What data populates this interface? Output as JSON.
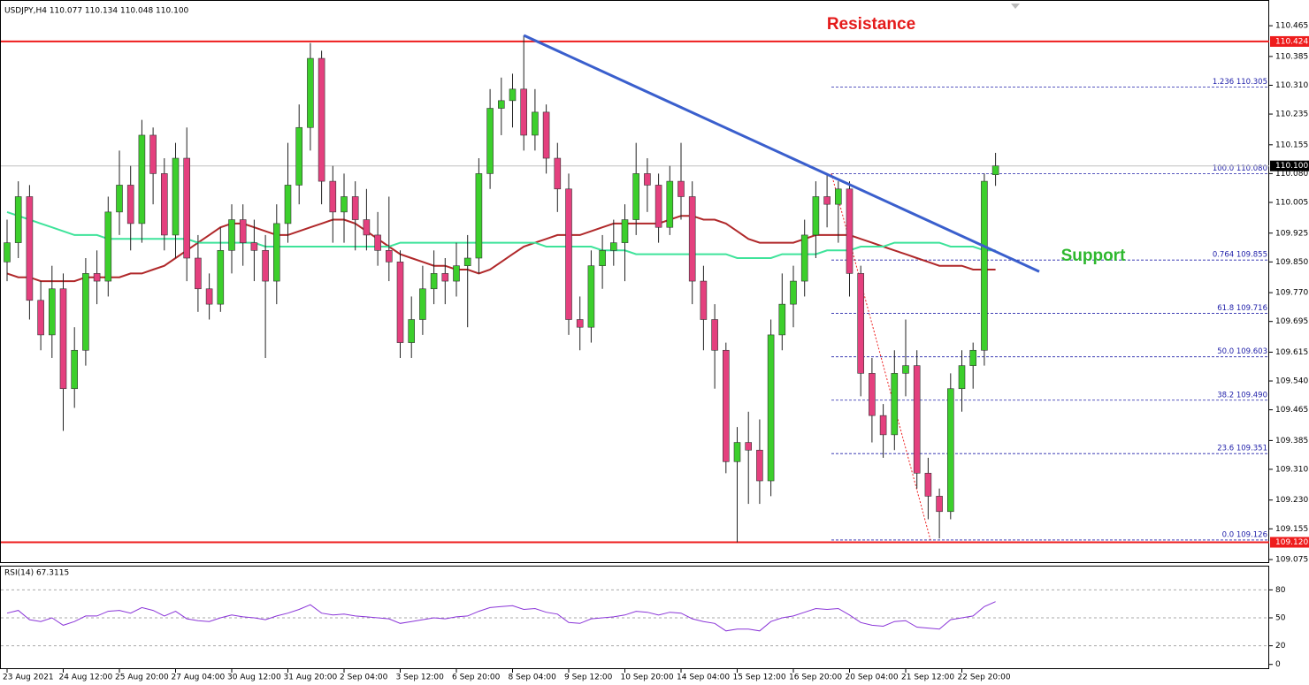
{
  "chart_data": {
    "type": "candlestick",
    "title": "USDJPY,H4 110.077 110.134 110.048 110.100",
    "categories": [
      "23 Aug 2021",
      null,
      null,
      null,
      null,
      "24 Aug 12:00",
      null,
      null,
      null,
      null,
      "25 Aug 20:00",
      null,
      null,
      null,
      null,
      "27 Aug 04:00",
      null,
      null,
      null,
      null,
      "30 Aug 12:00",
      null,
      null,
      null,
      null,
      "31 Aug 20:00",
      null,
      null,
      null,
      null,
      "2 Sep 04:00",
      null,
      null,
      null,
      null,
      "3 Sep 12:00",
      null,
      null,
      null,
      null,
      "6 Sep 20:00",
      null,
      null,
      null,
      null,
      "8 Sep 04:00",
      null,
      null,
      null,
      null,
      "9 Sep 12:00",
      null,
      null,
      null,
      null,
      "10 Sep 20:00",
      null,
      null,
      null,
      null,
      "14 Sep 04:00",
      null,
      null,
      null,
      null,
      "15 Sep 12:00",
      null,
      null,
      null,
      null,
      "16 Sep 20:00",
      null,
      null,
      null,
      null,
      "20 Sep 04:00",
      null,
      null,
      null,
      null,
      "21 Sep 12:00",
      null,
      null,
      null,
      null,
      "22 Sep 20:00",
      null,
      null,
      null
    ],
    "open": [
      109.85,
      109.9,
      110.02,
      109.75,
      109.66,
      109.78,
      109.52,
      109.62,
      109.82,
      109.8,
      109.98,
      110.05,
      109.95,
      110.18,
      110.08,
      109.92,
      110.12,
      109.86,
      109.78,
      109.74,
      109.88,
      109.96,
      109.9,
      109.88,
      109.8,
      109.95,
      110.05,
      110.2,
      110.38,
      110.06,
      109.98,
      110.02,
      109.96,
      109.92,
      109.88,
      109.85,
      109.64,
      109.7,
      109.78,
      109.82,
      109.8,
      109.84,
      109.86,
      110.08,
      110.25,
      110.27,
      110.3,
      110.18,
      110.24,
      110.12,
      110.04,
      109.7,
      109.68,
      109.84,
      109.88,
      109.9,
      109.96,
      110.08,
      110.05,
      109.94,
      110.06,
      110.02,
      109.8,
      109.7,
      109.62,
      109.33,
      109.38,
      109.36,
      109.28,
      109.66,
      109.74,
      109.8,
      109.92,
      110.02,
      110.0,
      110.04,
      109.82,
      109.56,
      109.45,
      109.4,
      109.56,
      109.58,
      109.3,
      109.24,
      109.2,
      109.52,
      109.58,
      109.62,
      110.077
    ],
    "high": [
      109.96,
      110.06,
      110.05,
      109.8,
      109.84,
      109.82,
      109.68,
      109.86,
      109.88,
      110.02,
      110.14,
      110.1,
      110.22,
      110.2,
      110.12,
      110.16,
      110.2,
      109.92,
      109.82,
      109.94,
      110.0,
      110.0,
      109.96,
      109.92,
      110.0,
      110.16,
      110.26,
      110.42,
      110.4,
      110.1,
      110.08,
      110.06,
      110.04,
      109.98,
      110.02,
      109.88,
      109.76,
      109.84,
      109.88,
      109.86,
      109.9,
      109.92,
      110.12,
      110.3,
      110.33,
      110.34,
      110.44,
      110.3,
      110.26,
      110.16,
      110.08,
      109.76,
      109.88,
      109.92,
      109.96,
      110.0,
      110.16,
      110.12,
      110.08,
      110.1,
      110.16,
      110.06,
      109.84,
      109.74,
      109.64,
      109.42,
      109.46,
      109.44,
      109.7,
      109.82,
      109.84,
      109.96,
      110.06,
      110.08,
      110.06,
      110.06,
      109.84,
      109.6,
      109.48,
      109.62,
      109.7,
      109.62,
      109.34,
      109.26,
      109.56,
      109.62,
      109.64,
      110.08,
      110.134
    ],
    "low": [
      109.8,
      109.86,
      109.7,
      109.62,
      109.6,
      109.41,
      109.47,
      109.58,
      109.74,
      109.76,
      109.92,
      109.88,
      109.9,
      110.0,
      109.88,
      109.86,
      109.8,
      109.72,
      109.7,
      109.72,
      109.82,
      109.84,
      109.8,
      109.6,
      109.74,
      109.9,
      110.0,
      110.14,
      110.0,
      109.9,
      109.9,
      109.88,
      109.88,
      109.84,
      109.8,
      109.6,
      109.6,
      109.66,
      109.74,
      109.74,
      109.76,
      109.68,
      109.82,
      110.04,
      110.18,
      110.2,
      110.14,
      110.14,
      110.08,
      109.98,
      109.66,
      109.62,
      109.64,
      109.78,
      109.84,
      109.8,
      109.92,
      109.98,
      109.9,
      109.92,
      109.96,
      109.74,
      109.62,
      109.52,
      109.3,
      109.12,
      109.22,
      109.22,
      109.24,
      109.62,
      109.68,
      109.76,
      109.86,
      109.94,
      109.9,
      109.76,
      109.5,
      109.38,
      109.34,
      109.36,
      109.5,
      109.26,
      109.18,
      109.13,
      109.18,
      109.46,
      109.52,
      109.58,
      110.048
    ],
    "close": [
      109.9,
      110.02,
      109.75,
      109.66,
      109.78,
      109.52,
      109.62,
      109.82,
      109.8,
      109.98,
      110.05,
      109.95,
      110.18,
      110.08,
      109.92,
      110.12,
      109.86,
      109.78,
      109.74,
      109.88,
      109.96,
      109.9,
      109.88,
      109.8,
      109.95,
      110.05,
      110.2,
      110.38,
      110.06,
      109.98,
      110.02,
      109.96,
      109.92,
      109.88,
      109.85,
      109.64,
      109.7,
      109.78,
      109.82,
      109.8,
      109.84,
      109.86,
      110.08,
      110.25,
      110.27,
      110.3,
      110.18,
      110.24,
      110.12,
      110.04,
      109.7,
      109.68,
      109.84,
      109.88,
      109.9,
      109.96,
      110.08,
      110.05,
      109.94,
      110.06,
      110.02,
      109.8,
      109.7,
      109.62,
      109.33,
      109.38,
      109.36,
      109.28,
      109.66,
      109.74,
      109.8,
      109.92,
      110.02,
      110.0,
      110.04,
      109.82,
      109.56,
      109.45,
      109.4,
      109.56,
      109.58,
      109.3,
      109.24,
      109.2,
      109.52,
      109.58,
      109.62,
      110.06,
      110.1
    ],
    "colors": {
      "up": "#3ccf2c",
      "down": "#e4407e",
      "wick": "#222222"
    },
    "moving_averages": [
      {
        "color": "#b0282a",
        "values": [
          109.82,
          109.81,
          109.81,
          109.8,
          109.8,
          109.8,
          109.8,
          109.81,
          109.81,
          109.81,
          109.81,
          109.82,
          109.82,
          109.83,
          109.84,
          109.86,
          109.88,
          109.9,
          109.92,
          109.94,
          109.95,
          109.95,
          109.94,
          109.93,
          109.92,
          109.92,
          109.93,
          109.94,
          109.95,
          109.96,
          109.96,
          109.95,
          109.93,
          109.91,
          109.89,
          109.87,
          109.86,
          109.85,
          109.84,
          109.84,
          109.83,
          109.83,
          109.82,
          109.83,
          109.85,
          109.87,
          109.89,
          109.9,
          109.91,
          109.92,
          109.92,
          109.92,
          109.93,
          109.94,
          109.95,
          109.95,
          109.95,
          109.95,
          109.95,
          109.96,
          109.97,
          109.97,
          109.96,
          109.96,
          109.95,
          109.93,
          109.91,
          109.9,
          109.9,
          109.9,
          109.9,
          109.91,
          109.92,
          109.92,
          109.92,
          109.92,
          109.91,
          109.9,
          109.89,
          109.88,
          109.87,
          109.86,
          109.85,
          109.84,
          109.84,
          109.84,
          109.83,
          109.83,
          109.83
        ]
      },
      {
        "color": "#3ee39a",
        "values": [
          109.98,
          109.97,
          109.96,
          109.95,
          109.94,
          109.93,
          109.92,
          109.92,
          109.92,
          109.91,
          109.91,
          109.91,
          109.91,
          109.91,
          109.91,
          109.91,
          109.91,
          109.9,
          109.9,
          109.9,
          109.9,
          109.9,
          109.9,
          109.89,
          109.89,
          109.89,
          109.89,
          109.89,
          109.89,
          109.89,
          109.89,
          109.89,
          109.89,
          109.89,
          109.89,
          109.9,
          109.9,
          109.9,
          109.9,
          109.9,
          109.9,
          109.9,
          109.9,
          109.9,
          109.9,
          109.9,
          109.9,
          109.9,
          109.89,
          109.89,
          109.89,
          109.89,
          109.89,
          109.88,
          109.88,
          109.88,
          109.87,
          109.87,
          109.87,
          109.87,
          109.87,
          109.87,
          109.87,
          109.87,
          109.87,
          109.86,
          109.86,
          109.86,
          109.86,
          109.87,
          109.87,
          109.87,
          109.87,
          109.88,
          109.88,
          109.88,
          109.89,
          109.89,
          109.89,
          109.9,
          109.9,
          109.9,
          109.9,
          109.9,
          109.89,
          109.89,
          109.89,
          109.88,
          109.88
        ]
      }
    ],
    "trendline": [
      110.44,
      109.825
    ],
    "levels": [
      {
        "value": 110.424,
        "color": "#ee1c1c"
      },
      {
        "value": 110.1,
        "label": "110.100",
        "color": "#000000"
      },
      {
        "value": 109.12,
        "label": "109.120",
        "color": "#ee1c1c"
      }
    ],
    "fibonacci": [
      {
        "value": 110.305,
        "label": "1.236 110.305"
      },
      {
        "value": 110.08,
        "label": "100.0 110.080"
      },
      {
        "value": 109.855,
        "label": "0.764 109.855"
      },
      {
        "value": 109.716,
        "label": "61.8 109.716"
      },
      {
        "value": 109.603,
        "label": "50.0 109.603"
      },
      {
        "value": 109.49,
        "label": "38.2 109.490"
      },
      {
        "value": 109.351,
        "label": "23.6 109.351"
      },
      {
        "value": 109.126,
        "label": "0.0 109.126"
      }
    ],
    "annotations": [
      "Resistance",
      "Support"
    ],
    "ylim": [
      109.066,
      110.532
    ],
    "yticks": [
      110.465,
      110.385,
      {
        "value": 110.31,
        "label": "110.310"
      },
      110.235,
      110.155,
      {
        "value": 110.08,
        "label": "110.080"
      },
      110.005,
      109.925,
      {
        "value": 109.85,
        "label": "109.850"
      },
      {
        "value": 109.77,
        "label": "109.770"
      },
      109.695,
      109.615,
      {
        "value": 109.54,
        "label": "109.540"
      },
      109.465,
      109.385,
      {
        "value": 109.31,
        "label": "109.310"
      },
      {
        "value": 109.23,
        "label": "109.230"
      },
      109.155,
      109.075
    ],
    "rsi": {
      "label": "RSI(14) 67.3115",
      "color": "#8a35d8",
      "ylim": [
        -5,
        105
      ],
      "yticks": [
        0,
        20,
        50,
        80
      ],
      "values": [
        55,
        58,
        48,
        46,
        50,
        42,
        46,
        52,
        52,
        57,
        58,
        55,
        61,
        58,
        52,
        57,
        49,
        47,
        46,
        50,
        53,
        51,
        50,
        48,
        52,
        55,
        59,
        64,
        55,
        53,
        54,
        52,
        51,
        50,
        49,
        44,
        46,
        48,
        50,
        49,
        51,
        52,
        57,
        61,
        62,
        63,
        59,
        60,
        56,
        54,
        45,
        44,
        49,
        50,
        51,
        53,
        57,
        56,
        53,
        56,
        55,
        49,
        46,
        44,
        36,
        38,
        38,
        36,
        46,
        50,
        52,
        56,
        60,
        59,
        60,
        53,
        45,
        42,
        41,
        46,
        47,
        40,
        39,
        38,
        48,
        50,
        52,
        62,
        67.3115
      ]
    }
  }
}
